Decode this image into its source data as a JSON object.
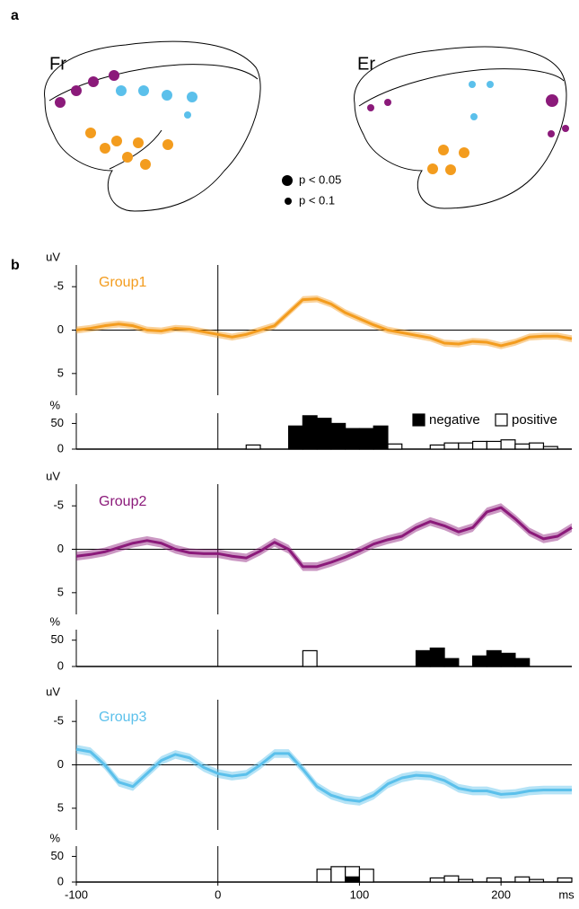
{
  "panel_a": {
    "label": "a",
    "left_title": "Fr",
    "right_title": "Er",
    "legend": [
      "p < 0.05",
      "p < 0.1"
    ]
  },
  "panel_b_label": "b",
  "chart_data": [
    {
      "type": "line",
      "ylabel": "uV",
      "xlim": [
        -100,
        250
      ],
      "ylim": [
        7.5,
        -7.5
      ],
      "yticks": [
        -5,
        0,
        5
      ],
      "x": [
        -100,
        -90,
        -80,
        -70,
        -60,
        -50,
        -40,
        -30,
        -20,
        -10,
        0,
        10,
        20,
        30,
        40,
        50,
        60,
        70,
        80,
        90,
        100,
        110,
        120,
        130,
        140,
        150,
        160,
        170,
        180,
        190,
        200,
        210,
        220,
        230,
        240,
        250
      ],
      "series": [
        {
          "name": "Group1",
          "color": "#f39c1e",
          "sem": 0.4,
          "values": [
            0,
            -0.2,
            -0.5,
            -0.7,
            -0.5,
            0,
            0.1,
            -0.2,
            -0.1,
            0.2,
            0.5,
            0.8,
            0.5,
            0,
            -0.5,
            -2,
            -3.5,
            -3.6,
            -3,
            -2,
            -1.3,
            -0.6,
            0,
            0.3,
            0.6,
            0.9,
            1.5,
            1.6,
            1.3,
            1.4,
            1.8,
            1.4,
            0.8,
            0.7,
            0.7,
            1.0
          ]
        }
      ]
    },
    {
      "type": "histogram",
      "ylabel": "%",
      "xlim": [
        -100,
        250
      ],
      "ylim": [
        0,
        70
      ],
      "yticks": [
        0,
        50
      ],
      "legend": true,
      "bins": [
        0,
        10,
        20,
        30,
        40,
        50,
        60,
        70,
        80,
        90,
        100,
        110,
        120,
        130,
        140,
        150,
        160,
        170,
        180,
        190,
        200,
        210,
        220,
        230,
        240,
        250
      ],
      "series": [
        {
          "name": "positive",
          "color": "#ffffff",
          "values": [
            0,
            0,
            8,
            0,
            0,
            0,
            0,
            0,
            0,
            0,
            0,
            0,
            10,
            0,
            0,
            8,
            12,
            12,
            15,
            15,
            18,
            10,
            12,
            5,
            0
          ]
        },
        {
          "name": "negative",
          "color": "#000000",
          "values": [
            0,
            0,
            0,
            0,
            0,
            45,
            65,
            60,
            50,
            40,
            40,
            45,
            0,
            0,
            0,
            0,
            0,
            0,
            0,
            0,
            0,
            0,
            0,
            0,
            0
          ]
        }
      ]
    },
    {
      "type": "line",
      "ylabel": "uV",
      "xlim": [
        -100,
        250
      ],
      "ylim": [
        7.5,
        -7.5
      ],
      "yticks": [
        -5,
        0,
        5
      ],
      "x": [
        -100,
        -90,
        -80,
        -70,
        -60,
        -50,
        -40,
        -30,
        -20,
        -10,
        0,
        10,
        20,
        30,
        40,
        50,
        60,
        70,
        80,
        90,
        100,
        110,
        120,
        130,
        140,
        150,
        160,
        170,
        180,
        190,
        200,
        210,
        220,
        230,
        240,
        250
      ],
      "series": [
        {
          "name": "Group2",
          "color": "#8b1a7a",
          "sem": 0.5,
          "values": [
            0.8,
            0.6,
            0.3,
            -0.2,
            -0.7,
            -1.0,
            -0.7,
            0,
            0.4,
            0.5,
            0.5,
            0.8,
            1.0,
            0.2,
            -0.8,
            0,
            2.0,
            2.0,
            1.5,
            0.9,
            0.2,
            -0.6,
            -1.1,
            -1.5,
            -2.5,
            -3.2,
            -2.7,
            -2.0,
            -2.5,
            -4.3,
            -4.8,
            -3.5,
            -2.0,
            -1.2,
            -1.5,
            -2.5
          ]
        }
      ]
    },
    {
      "type": "histogram",
      "ylabel": "%",
      "xlim": [
        -100,
        250
      ],
      "ylim": [
        0,
        70
      ],
      "yticks": [
        0,
        50
      ],
      "legend": false,
      "bins": [
        0,
        10,
        20,
        30,
        40,
        50,
        60,
        70,
        80,
        90,
        100,
        110,
        120,
        130,
        140,
        150,
        160,
        170,
        180,
        190,
        200,
        210,
        220,
        230,
        240,
        250
      ],
      "series": [
        {
          "color": "#ffffff",
          "values": [
            0,
            0,
            0,
            0,
            0,
            0,
            30,
            0,
            0,
            0,
            0,
            0,
            0,
            0,
            0,
            0,
            0,
            0,
            0,
            0,
            0,
            0,
            0,
            0,
            0
          ]
        },
        {
          "color": "#000000",
          "values": [
            0,
            0,
            0,
            0,
            0,
            0,
            0,
            0,
            0,
            0,
            0,
            0,
            0,
            0,
            30,
            35,
            15,
            0,
            20,
            30,
            25,
            15,
            0,
            0,
            0
          ]
        }
      ]
    },
    {
      "type": "line",
      "ylabel": "uV",
      "xlim": [
        -100,
        250
      ],
      "ylim": [
        7.5,
        -7.5
      ],
      "yticks": [
        -5,
        0,
        5
      ],
      "x": [
        -100,
        -90,
        -80,
        -70,
        -60,
        -50,
        -40,
        -30,
        -20,
        -10,
        0,
        10,
        20,
        30,
        40,
        50,
        60,
        70,
        80,
        90,
        100,
        110,
        120,
        130,
        140,
        150,
        160,
        170,
        180,
        190,
        200,
        210,
        220,
        230,
        240,
        250
      ],
      "series": [
        {
          "name": "Group3",
          "color": "#5bc0eb",
          "sem": 0.5,
          "values": [
            -1.8,
            -1.5,
            0,
            2.0,
            2.5,
            1.0,
            -0.5,
            -1.2,
            -0.8,
            0.3,
            1.0,
            1.3,
            1.1,
            0,
            -1.3,
            -1.3,
            0.5,
            2.5,
            3.5,
            4.0,
            4.2,
            3.5,
            2.2,
            1.5,
            1.2,
            1.3,
            1.8,
            2.7,
            3.0,
            3.0,
            3.4,
            3.3,
            3.0,
            2.9,
            2.9,
            2.9
          ]
        }
      ]
    },
    {
      "type": "histogram",
      "ylabel": "%",
      "xlim": [
        -100,
        250
      ],
      "ylim": [
        0,
        70
      ],
      "yticks": [
        0,
        50
      ],
      "legend": false,
      "xticks": [
        -100,
        0,
        100,
        200
      ],
      "xlabel": "ms",
      "bins": [
        0,
        10,
        20,
        30,
        40,
        50,
        60,
        70,
        80,
        90,
        100,
        110,
        120,
        130,
        140,
        150,
        160,
        170,
        180,
        190,
        200,
        210,
        220,
        230,
        240,
        250
      ],
      "series": [
        {
          "color": "#ffffff",
          "values": [
            0,
            0,
            0,
            0,
            0,
            0,
            0,
            25,
            30,
            30,
            25,
            0,
            0,
            0,
            0,
            8,
            12,
            5,
            0,
            8,
            0,
            10,
            5,
            0,
            8
          ]
        },
        {
          "color": "#000000",
          "values": [
            0,
            0,
            0,
            0,
            0,
            0,
            0,
            0,
            0,
            10,
            0,
            0,
            0,
            0,
            0,
            0,
            0,
            0,
            0,
            0,
            0,
            0,
            0,
            0,
            0
          ]
        }
      ]
    }
  ]
}
